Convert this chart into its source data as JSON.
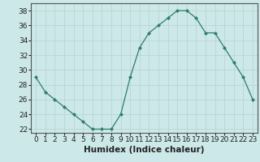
{
  "x": [
    0,
    1,
    2,
    3,
    4,
    5,
    6,
    7,
    8,
    9,
    10,
    11,
    12,
    13,
    14,
    15,
    16,
    17,
    18,
    19,
    20,
    21,
    22,
    23
  ],
  "y": [
    29,
    27,
    26,
    25,
    24,
    23,
    22,
    22,
    22,
    24,
    29,
    33,
    35,
    36,
    37,
    38,
    38,
    37,
    35,
    35,
    33,
    31,
    29,
    26
  ],
  "line_color": "#2e7d6e",
  "marker": "D",
  "marker_size": 2.0,
  "bg_color": "#cce8e8",
  "grid_color": "#b8d4d4",
  "xlabel": "Humidex (Indice chaleur)",
  "ylabel": "",
  "title": "",
  "xlim": [
    -0.5,
    23.5
  ],
  "ylim": [
    21.5,
    39
  ],
  "yticks": [
    22,
    24,
    26,
    28,
    30,
    32,
    34,
    36,
    38
  ],
  "xticks": [
    0,
    1,
    2,
    3,
    4,
    5,
    6,
    7,
    8,
    9,
    10,
    11,
    12,
    13,
    14,
    15,
    16,
    17,
    18,
    19,
    20,
    21,
    22,
    23
  ],
  "tick_fontsize": 6.5,
  "xlabel_fontsize": 7.5,
  "axis_color": "#2e7d6e",
  "spine_color": "#555555"
}
